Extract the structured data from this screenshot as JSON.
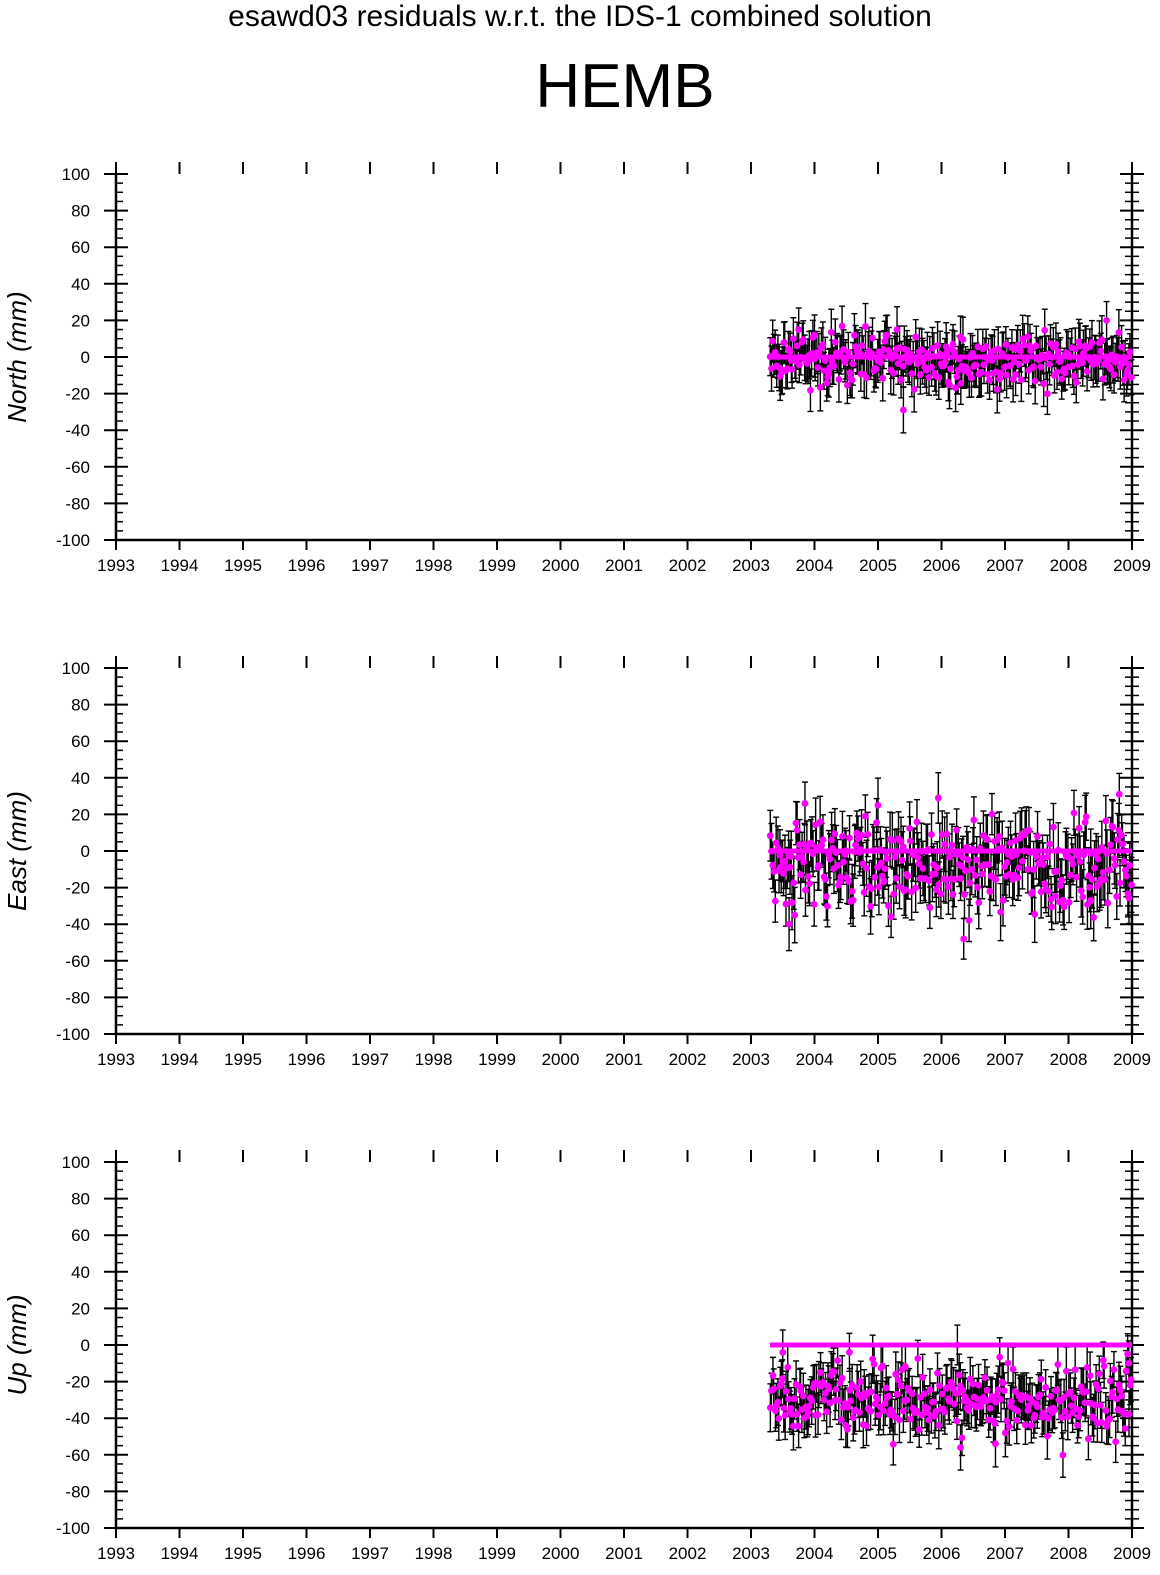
{
  "title": "esawd03 residuals w.r.t. the IDS-1 combined solution",
  "station": "HEMB",
  "colors": {
    "points": "#ff00ff",
    "error_bars": "#000000",
    "zero_line": "#ff00ff"
  },
  "chart_data": [
    {
      "type": "scatter",
      "panel": "north",
      "ylabel": "North (mm)",
      "xlim": [
        1993,
        2009
      ],
      "ylim": [
        -100,
        100
      ],
      "x_ticks": [
        "1993",
        "1994",
        "1995",
        "1996",
        "1997",
        "1998",
        "1999",
        "2000",
        "2001",
        "2002",
        "2003",
        "2004",
        "2005",
        "2006",
        "2007",
        "2008",
        "2009"
      ],
      "y_ticks": [
        "100",
        "80",
        "60",
        "40",
        "20",
        "0",
        "-20",
        "-40",
        "-60",
        "-80",
        "-100"
      ],
      "data_span": [
        2003.3,
        2009.0
      ],
      "reference_line_y": 0,
      "mean": -1,
      "scatter": 7,
      "error_bar": 11,
      "outliers": [
        [
          2008.6,
          20
        ],
        [
          2005.4,
          -29
        ],
        [
          2005.3,
          15
        ],
        [
          2004.0,
          12
        ],
        [
          2006.3,
          11
        ]
      ],
      "grid": false,
      "legend": "none"
    },
    {
      "type": "scatter",
      "panel": "east",
      "ylabel": "East (mm)",
      "xlim": [
        1993,
        2009
      ],
      "ylim": [
        -100,
        100
      ],
      "x_ticks": [
        "1993",
        "1994",
        "1995",
        "1996",
        "1997",
        "1998",
        "1999",
        "2000",
        "2001",
        "2002",
        "2003",
        "2004",
        "2005",
        "2006",
        "2007",
        "2008",
        "2009"
      ],
      "y_ticks": [
        "100",
        "80",
        "60",
        "40",
        "20",
        "0",
        "-20",
        "-40",
        "-60",
        "-80",
        "-100"
      ],
      "data_span": [
        2003.3,
        2009.0
      ],
      "reference_line_y": 0,
      "mean": -8,
      "scatter": 13,
      "error_bar": 13,
      "outliers": [
        [
          2006.35,
          -48
        ],
        [
          2005.0,
          25
        ],
        [
          2005.95,
          29
        ],
        [
          2008.8,
          31
        ],
        [
          2003.85,
          26
        ],
        [
          2003.6,
          -40
        ],
        [
          2008.35,
          -27
        ]
      ],
      "grid": false,
      "legend": "none"
    },
    {
      "type": "scatter",
      "panel": "up",
      "ylabel": "Up (mm)",
      "xlim": [
        1993,
        2009
      ],
      "ylim": [
        -100,
        100
      ],
      "x_ticks": [
        "1993",
        "1994",
        "1995",
        "1996",
        "1997",
        "1998",
        "1999",
        "2000",
        "2001",
        "2002",
        "2003",
        "2004",
        "2005",
        "2006",
        "2007",
        "2008",
        "2009"
      ],
      "y_ticks": [
        "100",
        "80",
        "60",
        "40",
        "20",
        "0",
        "-20",
        "-40",
        "-60",
        "-80",
        "-100"
      ],
      "data_span": [
        2003.3,
        2009.0
      ],
      "reference_line_y": 0,
      "mean": -30,
      "scatter": 9,
      "error_bar": 11,
      "outliers": [
        [
          2006.3,
          -56
        ],
        [
          2006.85,
          -54
        ],
        [
          2006.25,
          0
        ],
        [
          2003.5,
          -4
        ],
        [
          2008.95,
          -10
        ],
        [
          2004.55,
          -4
        ]
      ],
      "grid": false,
      "legend": "none"
    }
  ]
}
